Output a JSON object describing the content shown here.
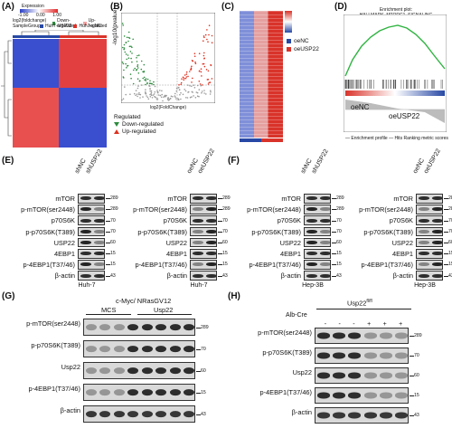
{
  "figure": {
    "panels": {
      "A": {
        "label": "(A)",
        "legend_title": "Expression",
        "scale_ticks": [
          "-1.00",
          "-0.80",
          "0.00",
          "0.80",
          "1.00"
        ],
        "row_labels": [
          "log2(foldchange)",
          "SampleGroup"
        ],
        "regulated_labels": [
          "Down-regulated",
          "Up-regulated"
        ],
        "group_labels": [
          "Huh7-USP22",
          "Huh7-siNC"
        ]
      },
      "B": {
        "label": "(B)",
        "ylabel": "-log10(pvalue)",
        "xlabel": "log2(FoldChange)",
        "legend_title": "Regulated",
        "legend_items": [
          "Down-regulated",
          "Up-regulated"
        ],
        "legend_colors": [
          "#2e8b3e",
          "#e0311f"
        ]
      },
      "C": {
        "label": "(C)",
        "legend_items": [
          "oeNC",
          "oeUSP22"
        ],
        "legend_colors": [
          "#2748a4",
          "#d9332a"
        ]
      },
      "D": {
        "label": "(D)",
        "title": "Enrichment plot: HALLMARK_MTORC1_SIGNALING",
        "groups": [
          "oeNC",
          "oeUSP22"
        ],
        "legend": "— Enrichment profile — Hits   Ranking metric scores"
      },
      "E": {
        "label": "(E)",
        "left_lanes": [
          "shNC",
          "shUSP22"
        ],
        "right_lanes": [
          "oeNC",
          "oeUSP22"
        ],
        "rows": [
          "mTOR",
          "p-mTOR(ser2448)",
          "p70S6K",
          "p-p70S6K(T389)",
          "USP22",
          "4EBP1",
          "p-4EBP1(T37/46)",
          "β-actin"
        ],
        "mw": [
          "289",
          "289",
          "70",
          "70",
          "60",
          "15",
          "15",
          "43"
        ],
        "cell": "Huh-7"
      },
      "F": {
        "label": "(F)",
        "left_lanes": [
          "shNC",
          "shUSP22"
        ],
        "right_lanes": [
          "oeNC",
          "oeUSP22"
        ],
        "rows": [
          "mTOR",
          "p-mTOR(ser2448)",
          "p70S6K",
          "p-p70S6K(T389)",
          "USP22",
          "4EBP1",
          "p-4EBP1(T37/46)",
          "β-actin"
        ],
        "mw": [
          "289",
          "289",
          "70",
          "70",
          "60",
          "15",
          "15",
          "43"
        ],
        "cell": "Hep-3B"
      },
      "G": {
        "label": "(G)",
        "title": "c-Myc/ NRasGV12",
        "groups": [
          "MCS",
          "Usp22"
        ],
        "rows": [
          "p-mTOR(ser2448)",
          "p-p70S6K(T389)",
          "Usp22",
          "p-4EBP1(T37/46)",
          "β-actin"
        ],
        "mw": [
          "289",
          "70",
          "60",
          "15",
          "43"
        ]
      },
      "H": {
        "label": "(H)",
        "title": "Usp22",
        "title_sup": "fl/fl",
        "cre_label": "Alb-Cre",
        "cre_signs": [
          "-",
          "-",
          "-",
          "+",
          "+",
          "+"
        ],
        "rows": [
          "p-mTOR(ser2448)",
          "p-p70S6K(T389)",
          "Usp22",
          "p-4EBP1(T37/46)",
          "β-actin"
        ],
        "mw": [
          "289",
          "70",
          "60",
          "15",
          "43"
        ]
      }
    },
    "colors": {
      "heat_high": "#e02a2a",
      "heat_low": "#2b3fc4",
      "blot_bg": "#d8d8d8"
    }
  }
}
